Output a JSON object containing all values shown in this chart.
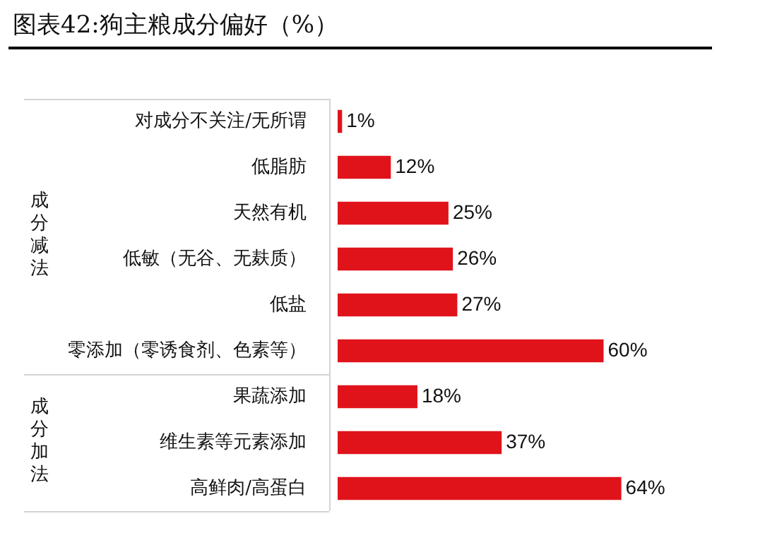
{
  "chart_data": {
    "type": "bar",
    "orientation": "horizontal",
    "title": "图表42:狗主粮成分偏好（%）",
    "categories": [
      "对成分不关注/无所谓",
      "低脂肪",
      "天然有机",
      "低敏（无谷、无麸质）",
      "低盐",
      "零添加（零诱食剂、色素等）",
      "果蔬添加",
      "维生素等元素添加",
      "高鲜肉/高蛋白"
    ],
    "values": [
      1,
      12,
      25,
      26,
      27,
      60,
      18,
      37,
      64
    ],
    "value_labels": [
      "1%",
      "12%",
      "25%",
      "26%",
      "27%",
      "60%",
      "18%",
      "37%",
      "64%"
    ],
    "color": "#e0131b",
    "annotations": [
      "成分减法",
      "成分加法"
    ],
    "tick_labels": "y",
    "grid": false,
    "legend": false
  }
}
